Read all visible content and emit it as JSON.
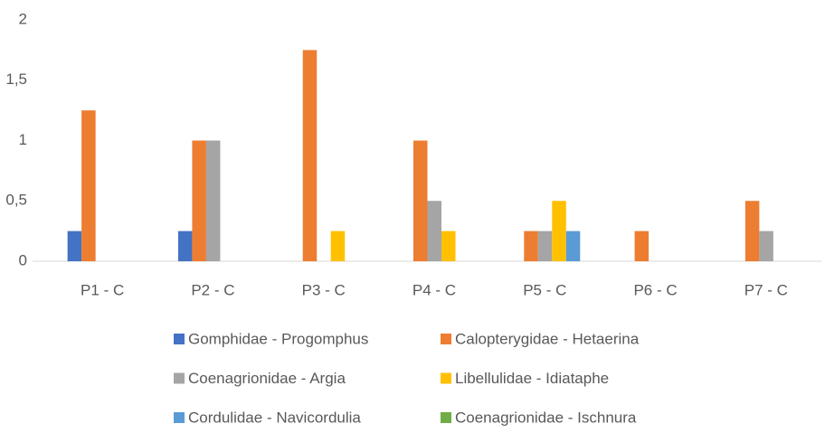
{
  "chart_data": {
    "type": "bar",
    "categories": [
      "P1 - C",
      "P2 - C",
      "P3 - C",
      "P4 - C",
      "P5 - C",
      "P6 - C",
      "P7 - C"
    ],
    "series": [
      {
        "name": "Gomphidae - Progomphus",
        "color": "#4472c4",
        "values": [
          0.25,
          0.25,
          0,
          0,
          0,
          0,
          0
        ]
      },
      {
        "name": "Calopterygidae - Hetaerina",
        "color": "#ed7d31",
        "values": [
          1.25,
          1,
          1.75,
          1,
          0.25,
          0.25,
          0.5
        ]
      },
      {
        "name": "Coenagrionidae - Argia",
        "color": "#a5a5a5",
        "values": [
          0,
          1,
          0,
          0.5,
          0.25,
          0,
          0.25
        ]
      },
      {
        "name": "Libellulidae - Idiataphe",
        "color": "#ffc000",
        "values": [
          0,
          0,
          0.25,
          0.25,
          0.5,
          0,
          0
        ]
      },
      {
        "name": "Cordulidae - Navicordulia",
        "color": "#5b9bd5",
        "values": [
          0,
          0,
          0,
          0,
          0.25,
          0,
          0
        ]
      },
      {
        "name": "Coenagrionidae - Ischnura",
        "color": "#70ad47",
        "values": [
          0,
          0,
          0,
          0,
          0,
          0,
          0
        ]
      }
    ],
    "ylim": [
      0,
      2
    ],
    "yticks": [
      0,
      {
        "value": 0.5,
        "label": "0,5"
      },
      1,
      {
        "value": 1.5,
        "label": "1,5"
      },
      2
    ],
    "grid": false,
    "legend": "bottom"
  }
}
